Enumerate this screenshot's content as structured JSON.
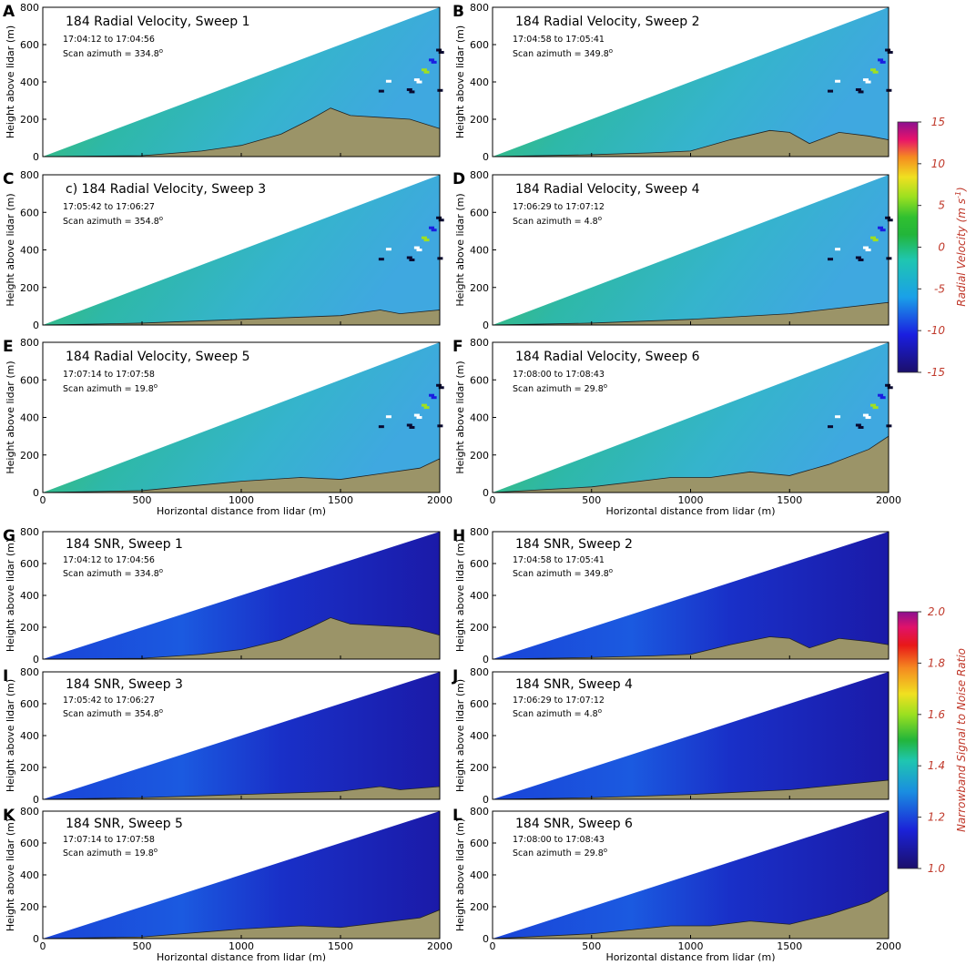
{
  "velocity_colorbar": {
    "label": "Radial Velocity (m s",
    "label_sup": "-1",
    "label_end": ")",
    "ticks": [
      "15",
      "10",
      "5",
      "0",
      "-5",
      "-10",
      "-15"
    ],
    "range": [
      -15,
      15
    ]
  },
  "snr_colorbar": {
    "label": "Narrowband Signal to Noise Ratio",
    "ticks": [
      "2.0",
      "1.8",
      "1.6",
      "1.4",
      "1.2",
      "1.0"
    ],
    "range": [
      1.0,
      2.0
    ]
  },
  "axes": {
    "ylabel": "Height above lidar (m)",
    "xlabel": "Horizontal distance from lidar (m)",
    "y_ticks": [
      "0",
      "200",
      "400",
      "600",
      "800"
    ],
    "x_ticks": [
      "0",
      "500",
      "1000",
      "1500",
      "2000"
    ],
    "xlim": [
      0,
      2000
    ],
    "ylim": [
      0,
      800
    ]
  },
  "panels": [
    {
      "letter": "A",
      "title": "184 Radial Velocity, Sweep 1",
      "time": "17:04:12 to 17:04:56",
      "azimuth": "Scan azimuth = 334.8",
      "field": "velocity"
    },
    {
      "letter": "B",
      "title": "184 Radial Velocity, Sweep 2",
      "time": "17:04:58 to 17:05:41",
      "azimuth": "Scan azimuth = 349.8",
      "field": "velocity"
    },
    {
      "letter": "C",
      "title": "c) 184 Radial Velocity, Sweep 3",
      "time": "17:05:42 to 17:06:27",
      "azimuth": "Scan azimuth = 354.8",
      "field": "velocity"
    },
    {
      "letter": "D",
      "title": "184 Radial Velocity,  Sweep 4",
      "time": "17:06:29 to 17:07:12",
      "azimuth": "Scan azimuth = 4.8",
      "field": "velocity"
    },
    {
      "letter": "E",
      "title": "184 Radial Velocity, Sweep 5",
      "time": "17:07:14 to 17:07:58",
      "azimuth": "Scan azimuth = 19.8",
      "field": "velocity"
    },
    {
      "letter": "F",
      "title": "184 Radial Velocity, Sweep 6",
      "time": "17:08:00 to 17:08:43",
      "azimuth": "Scan azimuth = 29.8",
      "field": "velocity"
    },
    {
      "letter": "G",
      "title": "184 SNR, Sweep 1",
      "time": "17:04:12 to 17:04:56",
      "azimuth": "Scan azimuth = 334.8",
      "field": "snr"
    },
    {
      "letter": "H",
      "title": "184 SNR, Sweep 2",
      "time": "17:04:58 to 17:05:41",
      "azimuth": "Scan azimuth = 349.8",
      "field": "snr"
    },
    {
      "letter": "I",
      "title": "184 SNR, Sweep 3",
      "time": "17:05:42 to 17:06:27",
      "azimuth": "Scan azimuth = 354.8",
      "field": "snr"
    },
    {
      "letter": "J",
      "title": "184 SNR,  Sweep 4",
      "time": "17:06:29 to 17:07:12",
      "azimuth": "Scan azimuth = 4.8",
      "field": "snr"
    },
    {
      "letter": "K",
      "title": "184 SNR, Sweep 5",
      "time": "17:07:14 to 17:07:58",
      "azimuth": "Scan azimuth = 19.8",
      "field": "snr"
    },
    {
      "letter": "L",
      "title": "184 SNR, Sweep 6",
      "time": "17:08:00 to 17:08:43",
      "azimuth": "Scan azimuth = 29.8",
      "field": "snr"
    }
  ],
  "chart_data": {
    "type": "heatmap",
    "xlim": [
      0,
      2000
    ],
    "ylim": [
      0,
      800
    ],
    "terrain_profiles": [
      {
        "panel": "A",
        "x": [
          0,
          500,
          800,
          1000,
          1200,
          1350,
          1450,
          1550,
          1700,
          1850,
          2000
        ],
        "y": [
          0,
          5,
          30,
          60,
          120,
          200,
          260,
          220,
          210,
          200,
          150
        ]
      },
      {
        "panel": "B",
        "x": [
          0,
          500,
          800,
          1000,
          1200,
          1400,
          1500,
          1600,
          1750,
          1900,
          2000
        ],
        "y": [
          0,
          10,
          20,
          30,
          90,
          140,
          130,
          70,
          130,
          110,
          90
        ]
      },
      {
        "panel": "C",
        "x": [
          0,
          500,
          1000,
          1500,
          1700,
          1800,
          2000
        ],
        "y": [
          0,
          10,
          30,
          50,
          80,
          60,
          80
        ]
      },
      {
        "panel": "D",
        "x": [
          0,
          500,
          1000,
          1500,
          2000
        ],
        "y": [
          0,
          10,
          30,
          60,
          120
        ]
      },
      {
        "panel": "E",
        "x": [
          0,
          500,
          1000,
          1300,
          1500,
          1700,
          1900,
          2000
        ],
        "y": [
          0,
          10,
          60,
          80,
          70,
          100,
          130,
          180
        ]
      },
      {
        "panel": "F",
        "x": [
          0,
          500,
          900,
          1100,
          1300,
          1500,
          1700,
          1900,
          2000
        ],
        "y": [
          0,
          30,
          80,
          80,
          110,
          90,
          150,
          230,
          300
        ]
      }
    ]
  }
}
